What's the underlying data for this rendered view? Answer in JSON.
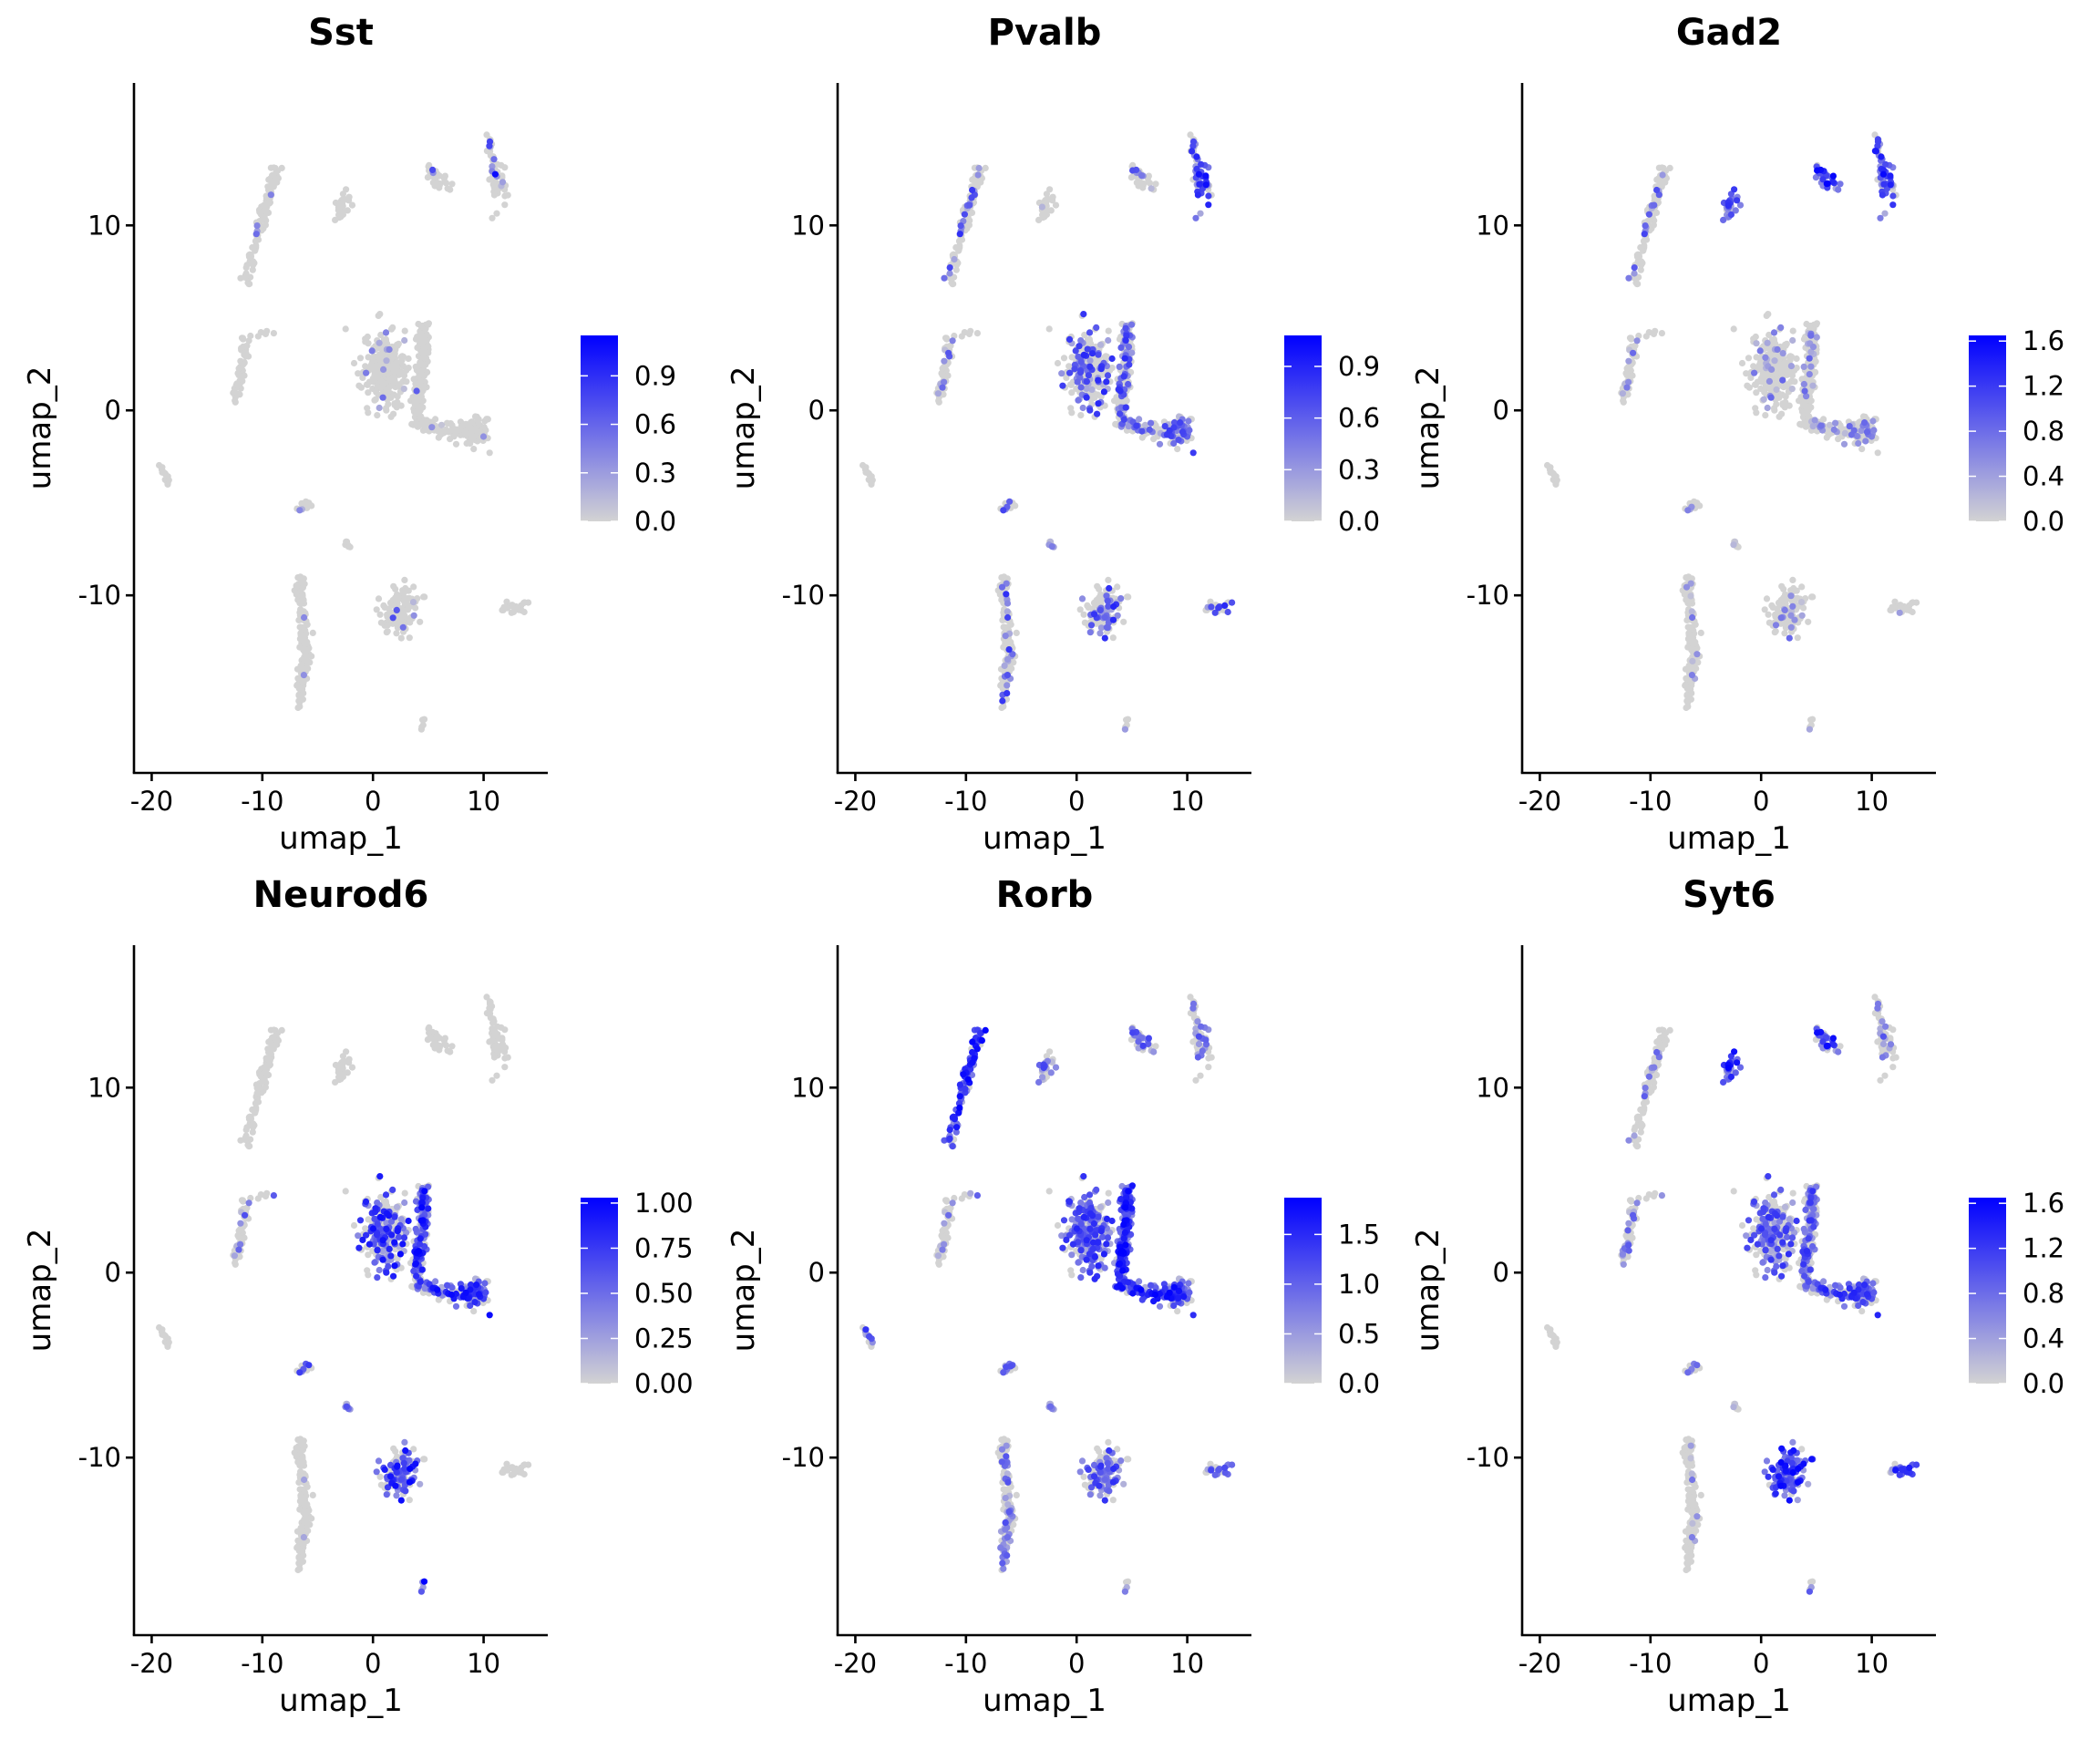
{
  "chart_data": {
    "type": "scatter",
    "figure_title": "",
    "layout": "2 rows x 3 columns",
    "color_scale": {
      "low": "#d3d3d3",
      "high": "#0000ff"
    },
    "point_color_default": "#d3d3d3",
    "shared_axes": {
      "xlabel": "umap_1",
      "ylabel": "umap_2",
      "xlim": [
        -21.6,
        15.8
      ],
      "ylim": [
        -19.6,
        17.7
      ],
      "xticks": [
        -20,
        -10,
        0,
        10
      ],
      "xtick_labels": [
        "-20",
        "-10",
        "0",
        "10"
      ],
      "yticks": [
        -10,
        0,
        10
      ],
      "ytick_labels": [
        "-10",
        "0",
        "10"
      ],
      "grid": false
    },
    "clusters": [
      {
        "id": "streak_upper_left",
        "path": [
          [
            -11.4,
            6.8
          ],
          [
            -10.5,
            9.5
          ],
          [
            -9.5,
            11.2
          ],
          [
            -8.7,
            13.0
          ]
        ],
        "width": 0.45,
        "n": 110
      },
      {
        "id": "small_upper_mid",
        "center": [
          -2.8,
          11.1
        ],
        "sd": [
          0.4,
          0.35
        ],
        "n": 30
      },
      {
        "id": "pair_top_right",
        "path": [
          [
            5.0,
            12.9
          ],
          [
            5.8,
            12.6
          ],
          [
            6.4,
            12.3
          ],
          [
            7.2,
            12.3
          ]
        ],
        "width": 0.3,
        "n": 30
      },
      {
        "id": "stalk_top_right",
        "path": [
          [
            10.4,
            15.0
          ],
          [
            10.6,
            14.0
          ],
          [
            10.9,
            13.2
          ],
          [
            11.1,
            12.6
          ]
        ],
        "width": 0.25,
        "n": 25
      },
      {
        "id": "blob_top_right",
        "center": [
          11.4,
          12.2
        ],
        "sd": [
          0.45,
          0.5
        ],
        "n": 35
      },
      {
        "id": "mid_left",
        "path": [
          [
            -12.5,
            0.3
          ],
          [
            -12.0,
            2.0
          ],
          [
            -11.5,
            3.8
          ]
        ],
        "width": 0.4,
        "n": 55
      },
      {
        "id": "mid_left_dots",
        "path": [
          [
            -11.3,
            4.1
          ],
          [
            -8.8,
            4.2
          ]
        ],
        "width": 0.15,
        "n": 6
      },
      {
        "id": "central_left_lobe",
        "center": [
          1.0,
          2.2
        ],
        "sd": [
          0.9,
          1.0
        ],
        "n": 260
      },
      {
        "id": "central_right_column",
        "path": [
          [
            4.6,
            4.7
          ],
          [
            4.5,
            3.0
          ],
          [
            4.2,
            1.0
          ],
          [
            4.0,
            -0.5
          ]
        ],
        "width": 0.55,
        "n": 200
      },
      {
        "id": "central_lower_arm",
        "path": [
          [
            4.0,
            -0.6
          ],
          [
            6.0,
            -1.0
          ],
          [
            8.0,
            -1.1
          ],
          [
            9.5,
            -1.2
          ]
        ],
        "width": 0.4,
        "n": 110
      },
      {
        "id": "central_arm_end",
        "center": [
          9.3,
          -1.0
        ],
        "sd": [
          0.6,
          0.45
        ],
        "n": 60
      },
      {
        "id": "far_left_small",
        "path": [
          [
            -19.3,
            -2.8
          ],
          [
            -18.7,
            -3.6
          ],
          [
            -18.5,
            -4.0
          ]
        ],
        "width": 0.2,
        "n": 14
      },
      {
        "id": "small_mid_low",
        "center": [
          -6.4,
          -5.2
        ],
        "sd": [
          0.35,
          0.15
        ],
        "n": 14
      },
      {
        "id": "tiny_mid_low",
        "center": [
          -2.3,
          -7.4
        ],
        "sd": [
          0.15,
          0.2
        ],
        "n": 7
      },
      {
        "id": "streak_bottom",
        "path": [
          [
            -6.6,
            -9.2
          ],
          [
            -6.3,
            -11.5
          ],
          [
            -6.2,
            -13.5
          ],
          [
            -6.8,
            -16.0
          ]
        ],
        "width": 0.45,
        "n": 150
      },
      {
        "id": "lower_mid_blob",
        "center": [
          2.5,
          -10.9
        ],
        "sd": [
          0.75,
          0.7
        ],
        "n": 120
      },
      {
        "id": "lower_right_small",
        "center": [
          12.7,
          -10.6
        ],
        "sd": [
          0.55,
          0.18
        ],
        "n": 24
      },
      {
        "id": "bottom_tiny",
        "path": [
          [
            4.6,
            -16.6
          ],
          [
            4.4,
            -17.2
          ]
        ],
        "width": 0.12,
        "n": 6
      }
    ],
    "panels": [
      {
        "gene": "Sst",
        "legend": {
          "max": 1.15,
          "ticks": [
            0.0,
            0.3,
            0.6,
            0.9
          ],
          "tick_labels": [
            "0.0",
            "0.3",
            "0.6",
            "0.9"
          ]
        },
        "expression": {
          "streak_upper_left": [
            0.02,
            0.6
          ],
          "small_upper_mid": [
            0,
            0
          ],
          "pair_top_right": [
            0.05,
            0.8
          ],
          "stalk_top_right": [
            0.35,
            1.1
          ],
          "blob_top_right": [
            0.02,
            0.4
          ],
          "mid_left": [
            0.01,
            0.4
          ],
          "mid_left_dots": [
            0,
            0
          ],
          "central_left_lobe": [
            0.04,
            0.6
          ],
          "central_right_column": [
            0.02,
            0.7
          ],
          "central_lower_arm": [
            0.01,
            0.5
          ],
          "central_arm_end": [
            0.02,
            0.5
          ],
          "far_left_small": [
            0,
            0
          ],
          "small_mid_low": [
            0.1,
            0.5
          ],
          "tiny_mid_low": [
            0,
            0
          ],
          "streak_bottom": [
            0.01,
            0.5
          ],
          "lower_mid_blob": [
            0.07,
            0.9
          ],
          "lower_right_small": [
            0,
            0
          ],
          "bottom_tiny": [
            0,
            0
          ]
        }
      },
      {
        "gene": "Pvalb",
        "legend": {
          "max": 1.08,
          "ticks": [
            0.0,
            0.3,
            0.6,
            0.9
          ],
          "tick_labels": [
            "0.0",
            "0.3",
            "0.6",
            "0.9"
          ]
        },
        "expression": {
          "streak_upper_left": [
            0.18,
            0.9
          ],
          "small_upper_mid": [
            0.02,
            0.4
          ],
          "pair_top_right": [
            0.2,
            0.7
          ],
          "stalk_top_right": [
            0.6,
            1.0
          ],
          "blob_top_right": [
            0.9,
            1.08
          ],
          "mid_left": [
            0.2,
            0.7
          ],
          "mid_left_dots": [
            0.1,
            0.4
          ],
          "central_left_lobe": [
            0.35,
            0.9
          ],
          "central_right_column": [
            0.3,
            0.9
          ],
          "central_lower_arm": [
            0.25,
            0.8
          ],
          "central_arm_end": [
            0.45,
            0.8
          ],
          "far_left_small": [
            0.05,
            0.4
          ],
          "small_mid_low": [
            0.5,
            0.9
          ],
          "tiny_mid_low": [
            0.4,
            0.8
          ],
          "streak_bottom": [
            0.15,
            0.9
          ],
          "lower_mid_blob": [
            0.35,
            0.9
          ],
          "lower_right_small": [
            0.35,
            1.0
          ],
          "bottom_tiny": [
            0.1,
            0.5
          ]
        }
      },
      {
        "gene": "Gad2",
        "legend": {
          "max": 1.65,
          "ticks": [
            0.0,
            0.4,
            0.8,
            1.2,
            1.6
          ],
          "tick_labels": [
            "0.0",
            "0.4",
            "0.8",
            "1.2",
            "1.6"
          ]
        },
        "expression": {
          "streak_upper_left": [
            0.15,
            1.2
          ],
          "small_upper_mid": [
            0.95,
            1.3
          ],
          "pair_top_right": [
            0.85,
            1.65
          ],
          "stalk_top_right": [
            0.7,
            1.6
          ],
          "blob_top_right": [
            0.9,
            1.5
          ],
          "mid_left": [
            0.15,
            0.9
          ],
          "mid_left_dots": [
            0,
            0
          ],
          "central_left_lobe": [
            0.12,
            0.9
          ],
          "central_right_column": [
            0.12,
            0.9
          ],
          "central_lower_arm": [
            0.12,
            0.8
          ],
          "central_arm_end": [
            0.25,
            0.9
          ],
          "far_left_small": [
            0.05,
            0.5
          ],
          "small_mid_low": [
            0.3,
            0.8
          ],
          "tiny_mid_low": [
            0.2,
            0.6
          ],
          "streak_bottom": [
            0.06,
            0.9
          ],
          "lower_mid_blob": [
            0.15,
            0.9
          ],
          "lower_right_small": [
            0.05,
            0.6
          ],
          "bottom_tiny": [
            0.2,
            0.6
          ]
        }
      },
      {
        "gene": "Neurod6",
        "legend": {
          "max": 1.03,
          "ticks": [
            0.0,
            0.25,
            0.5,
            0.75,
            1.0
          ],
          "tick_labels": [
            "0.00",
            "0.25",
            "0.50",
            "0.75",
            "1.00"
          ]
        },
        "expression": {
          "streak_upper_left": [
            0,
            0
          ],
          "small_upper_mid": [
            0,
            0
          ],
          "pair_top_right": [
            0,
            0
          ],
          "stalk_top_right": [
            0,
            0
          ],
          "blob_top_right": [
            0,
            0
          ],
          "mid_left": [
            0.12,
            0.7
          ],
          "mid_left_dots": [
            0.3,
            0.7
          ],
          "central_left_lobe": [
            0.5,
            1.0
          ],
          "central_right_column": [
            0.55,
            1.03
          ],
          "central_lower_arm": [
            0.5,
            1.0
          ],
          "central_arm_end": [
            0.6,
            1.0
          ],
          "far_left_small": [
            0.05,
            0.4
          ],
          "small_mid_low": [
            0.6,
            0.9
          ],
          "tiny_mid_low": [
            0.6,
            0.9
          ],
          "streak_bottom": [
            0.01,
            0.3
          ],
          "lower_mid_blob": [
            0.6,
            1.03
          ],
          "lower_right_small": [
            0.02,
            0.3
          ],
          "bottom_tiny": [
            0.9,
            1.03
          ]
        }
      },
      {
        "gene": "Rorb",
        "legend": {
          "max": 1.87,
          "ticks": [
            0.0,
            0.5,
            1.0,
            1.5
          ],
          "tick_labels": [
            "0.0",
            "0.5",
            "1.0",
            "1.5"
          ]
        },
        "expression": {
          "streak_upper_left": [
            0.9,
            1.87
          ],
          "small_upper_mid": [
            0.5,
            1.3
          ],
          "pair_top_right": [
            0.5,
            1.3
          ],
          "stalk_top_right": [
            0.35,
            1.2
          ],
          "blob_top_right": [
            0.5,
            1.3
          ],
          "mid_left": [
            0.15,
            1.0
          ],
          "mid_left_dots": [
            0.5,
            1.2
          ],
          "central_left_lobe": [
            0.75,
            1.6
          ],
          "central_right_column": [
            0.95,
            1.87
          ],
          "central_lower_arm": [
            0.9,
            1.87
          ],
          "central_arm_end": [
            0.6,
            1.5
          ],
          "far_left_small": [
            0.5,
            1.5
          ],
          "small_mid_low": [
            0.7,
            1.3
          ],
          "tiny_mid_low": [
            0.7,
            1.3
          ],
          "streak_bottom": [
            0.35,
            1.2
          ],
          "lower_mid_blob": [
            0.55,
            1.5
          ],
          "lower_right_small": [
            0.55,
            1.4
          ],
          "bottom_tiny": [
            0.6,
            1.3
          ]
        }
      },
      {
        "gene": "Syt6",
        "legend": {
          "max": 1.65,
          "ticks": [
            0.0,
            0.4,
            0.8,
            1.2,
            1.6
          ],
          "tick_labels": [
            "0.0",
            "0.4",
            "0.8",
            "1.2",
            "1.6"
          ]
        },
        "expression": {
          "streak_upper_left": [
            0.12,
            1.0
          ],
          "small_upper_mid": [
            0.95,
            1.65
          ],
          "pair_top_right": [
            0.6,
            1.6
          ],
          "stalk_top_right": [
            0.3,
            1.0
          ],
          "blob_top_right": [
            0.3,
            0.9
          ],
          "mid_left": [
            0.3,
            1.0
          ],
          "mid_left_dots": [
            0.2,
            0.6
          ],
          "central_left_lobe": [
            0.5,
            1.3
          ],
          "central_right_column": [
            0.45,
            1.3
          ],
          "central_lower_arm": [
            0.5,
            1.4
          ],
          "central_arm_end": [
            0.55,
            1.4
          ],
          "far_left_small": [
            0.05,
            0.4
          ],
          "small_mid_low": [
            0.55,
            1.0
          ],
          "tiny_mid_low": [
            0.3,
            0.7
          ],
          "streak_bottom": [
            0.05,
            0.9
          ],
          "lower_mid_blob": [
            0.95,
            1.65
          ],
          "lower_right_small": [
            0.75,
            1.65
          ],
          "bottom_tiny": [
            0.8,
            1.65
          ]
        }
      }
    ]
  }
}
